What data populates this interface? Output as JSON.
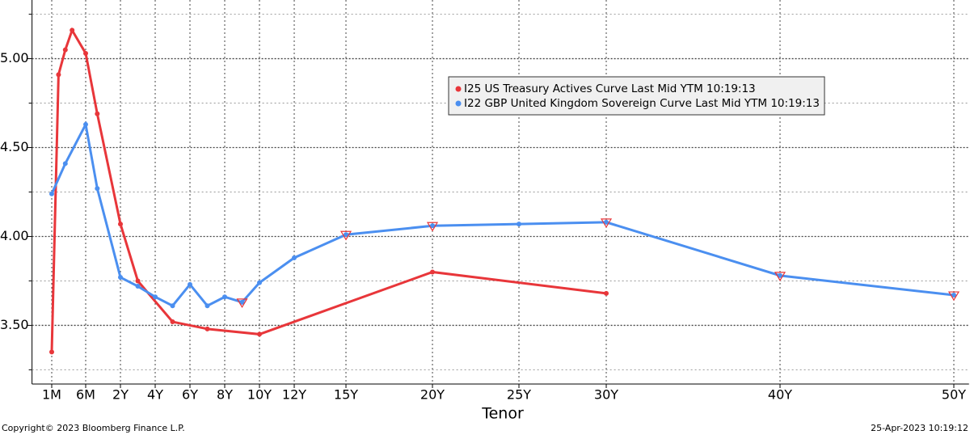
{
  "chart_data": {
    "type": "line",
    "x_label": "Tenor",
    "footer_left": "Copyright© 2023 Bloomberg Finance L.P.",
    "footer_right": "25-Apr-2023 10:19:12",
    "xlim": [
      0,
      50.5
    ],
    "xticks": [
      {
        "value": 0.0833,
        "label": "1M"
      },
      {
        "value": 0.5,
        "label": "6M"
      },
      {
        "value": 2,
        "label": "2Y"
      },
      {
        "value": 4,
        "label": "4Y"
      },
      {
        "value": 6,
        "label": "6Y"
      },
      {
        "value": 8,
        "label": "8Y"
      },
      {
        "value": 10,
        "label": "10Y"
      },
      {
        "value": 12,
        "label": "12Y"
      },
      {
        "value": 15,
        "label": "15Y"
      },
      {
        "value": 20,
        "label": "20Y"
      },
      {
        "value": 25,
        "label": "25Y"
      },
      {
        "value": 30,
        "label": "30Y"
      },
      {
        "value": 40,
        "label": "40Y"
      },
      {
        "value": 50,
        "label": "50Y"
      }
    ],
    "ylim": [
      3.17,
      5.33
    ],
    "yticks": [
      {
        "value": 3.5,
        "label": "3.50"
      },
      {
        "value": 4,
        "label": "4.00"
      },
      {
        "value": 4.5,
        "label": "4.50"
      },
      {
        "value": 5,
        "label": "5.00"
      }
    ],
    "minor_yticks": [
      3.25,
      3.75,
      4.25,
      4.75,
      5.25
    ],
    "grid": true,
    "series": [
      {
        "name": "I25 US Treasury Actives Curve Last Mid YTM 10:19:13",
        "color": "#e8363a",
        "x": [
          0.0833,
          0.1667,
          0.25,
          0.3333,
          0.5,
          1,
          2,
          3,
          5,
          7,
          10,
          20,
          30
        ],
        "values": [
          3.35,
          4.91,
          5.05,
          5.16,
          5.03,
          4.69,
          4.07,
          3.75,
          3.52,
          3.48,
          3.45,
          3.8,
          3.68
        ]
      },
      {
        "name": "I22 GBP United Kingdom Sovereign Curve Last Mid YTM 10:19:13",
        "color": "#4b8ff0",
        "x": [
          0.0833,
          0.25,
          0.5,
          1,
          2,
          3,
          4,
          5,
          6,
          7,
          8,
          9,
          10,
          12,
          15,
          20,
          25,
          30,
          40,
          50
        ],
        "values": [
          4.24,
          4.41,
          4.63,
          4.27,
          3.77,
          3.72,
          3.66,
          3.61,
          3.73,
          3.61,
          3.66,
          3.63,
          3.74,
          3.88,
          4.01,
          4.06,
          4.07,
          4.08,
          3.78,
          3.67
        ],
        "flagged_points": [
          11,
          14,
          15,
          17,
          18,
          19
        ]
      }
    ]
  }
}
